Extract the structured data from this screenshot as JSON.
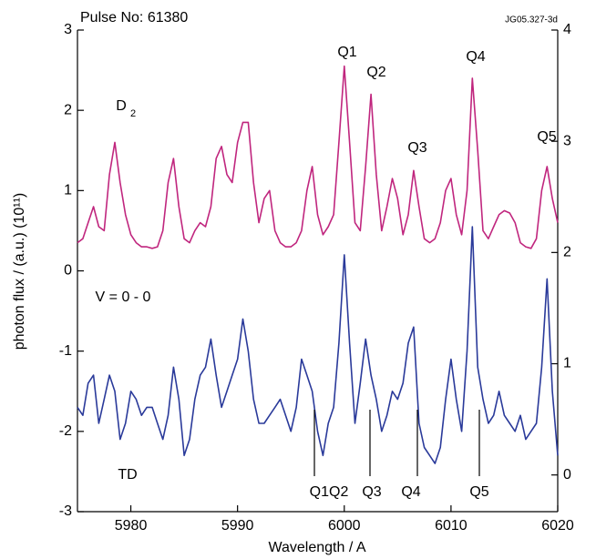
{
  "chart_data": {
    "type": "line",
    "title": "Pulse No: 61380",
    "code": "JG05.327-3d",
    "x_label": "Wavelength / A",
    "y_label": "photon flux / (a.u.) (10¹¹)",
    "annotations": [
      "Q1",
      "Q2",
      "Q3",
      "Q4",
      "Q5",
      "D",
      "2",
      "V = 0 - 0",
      "TD",
      "Q1Q2",
      "Q3",
      "Q4",
      "Q5"
    ],
    "x": [
      5975,
      5975.5,
      5976,
      5976.5,
      5977,
      5977.5,
      5978,
      5978.5,
      5979,
      5979.5,
      5980,
      5980.5,
      5981,
      5981.5,
      5982,
      5982.5,
      5983,
      5983.5,
      5984,
      5984.5,
      5985,
      5985.5,
      5986,
      5986.5,
      5987,
      5987.5,
      5988,
      5988.5,
      5989,
      5989.5,
      5990,
      5990.5,
      5991,
      5991.5,
      5992,
      5992.5,
      5993,
      5993.5,
      5994,
      5994.5,
      5995,
      5995.5,
      5996,
      5996.5,
      5997,
      5997.5,
      5998,
      5998.5,
      5999,
      5999.5,
      6000,
      6000.5,
      6001,
      6001.5,
      6002,
      6002.5,
      6003,
      6003.5,
      6004,
      6004.5,
      6005,
      6005.5,
      6006,
      6006.5,
      6007,
      6007.5,
      6008,
      6008.5,
      6009,
      6009.5,
      6010,
      6010.5,
      6011,
      6011.5,
      6012,
      6012.5,
      6013,
      6013.5,
      6014,
      6014.5,
      6015,
      6015.5,
      6016,
      6016.5,
      6017,
      6017.5,
      6018,
      6018.5,
      6019,
      6019.5,
      6020
    ],
    "series": [
      {
        "name": "D2",
        "color": "#c0267e",
        "values": [
          0.35,
          0.4,
          0.6,
          0.8,
          0.55,
          0.5,
          1.2,
          1.6,
          1.1,
          0.7,
          0.45,
          0.35,
          0.3,
          0.3,
          0.28,
          0.3,
          0.5,
          1.1,
          1.4,
          0.8,
          0.4,
          0.35,
          0.5,
          0.6,
          0.55,
          0.8,
          1.4,
          1.55,
          1.2,
          1.1,
          1.6,
          1.85,
          1.85,
          1.1,
          0.6,
          0.9,
          1.0,
          0.5,
          0.35,
          0.3,
          0.3,
          0.35,
          0.5,
          1.0,
          1.3,
          0.7,
          0.45,
          0.55,
          0.7,
          1.6,
          2.55,
          1.6,
          0.6,
          0.5,
          1.3,
          2.2,
          1.2,
          0.5,
          0.8,
          1.15,
          0.9,
          0.45,
          0.7,
          1.25,
          0.8,
          0.4,
          0.35,
          0.4,
          0.6,
          1.0,
          1.15,
          0.7,
          0.45,
          1.0,
          2.4,
          1.5,
          0.5,
          0.4,
          0.55,
          0.7,
          0.75,
          0.72,
          0.6,
          0.35,
          0.3,
          0.28,
          0.4,
          1.0,
          1.3,
          0.9,
          0.6
        ]
      },
      {
        "name": "TD",
        "color": "#2a3a9a",
        "values": [
          -1.7,
          -1.8,
          -1.4,
          -1.3,
          -1.9,
          -1.6,
          -1.3,
          -1.5,
          -2.1,
          -1.9,
          -1.5,
          -1.6,
          -1.8,
          -1.7,
          -1.7,
          -1.9,
          -2.1,
          -1.8,
          -1.2,
          -1.6,
          -2.3,
          -2.1,
          -1.6,
          -1.3,
          -1.2,
          -0.85,
          -1.3,
          -1.7,
          -1.5,
          -1.3,
          -1.1,
          -0.6,
          -1.0,
          -1.6,
          -1.9,
          -1.9,
          -1.8,
          -1.7,
          -1.6,
          -1.8,
          -2.0,
          -1.7,
          -1.1,
          -1.3,
          -1.5,
          -2.0,
          -2.3,
          -1.9,
          -1.7,
          -0.9,
          0.2,
          -0.9,
          -1.9,
          -1.4,
          -0.85,
          -1.3,
          -1.6,
          -2.0,
          -1.8,
          -1.5,
          -1.6,
          -1.4,
          -0.9,
          -0.7,
          -1.9,
          -2.2,
          -2.3,
          -2.4,
          -2.2,
          -1.6,
          -1.1,
          -1.6,
          -2.0,
          -1.0,
          0.55,
          -1.2,
          -1.6,
          -1.9,
          -1.8,
          -1.5,
          -1.8,
          -1.9,
          -2.0,
          -1.8,
          -2.1,
          -2.0,
          -1.9,
          -1.2,
          -0.1,
          -1.5,
          -2.3
        ]
      }
    ],
    "xlim": [
      5975,
      6020
    ],
    "xticks": [
      5980,
      5990,
      6000,
      6010,
      6020
    ],
    "ylim": [
      -3,
      3
    ],
    "yticks": [
      -3,
      -2,
      -1,
      0,
      1,
      2,
      3
    ],
    "y2lim": [
      -0.33,
      4
    ],
    "y2ticks": [
      0,
      1,
      2,
      3,
      4
    ]
  }
}
